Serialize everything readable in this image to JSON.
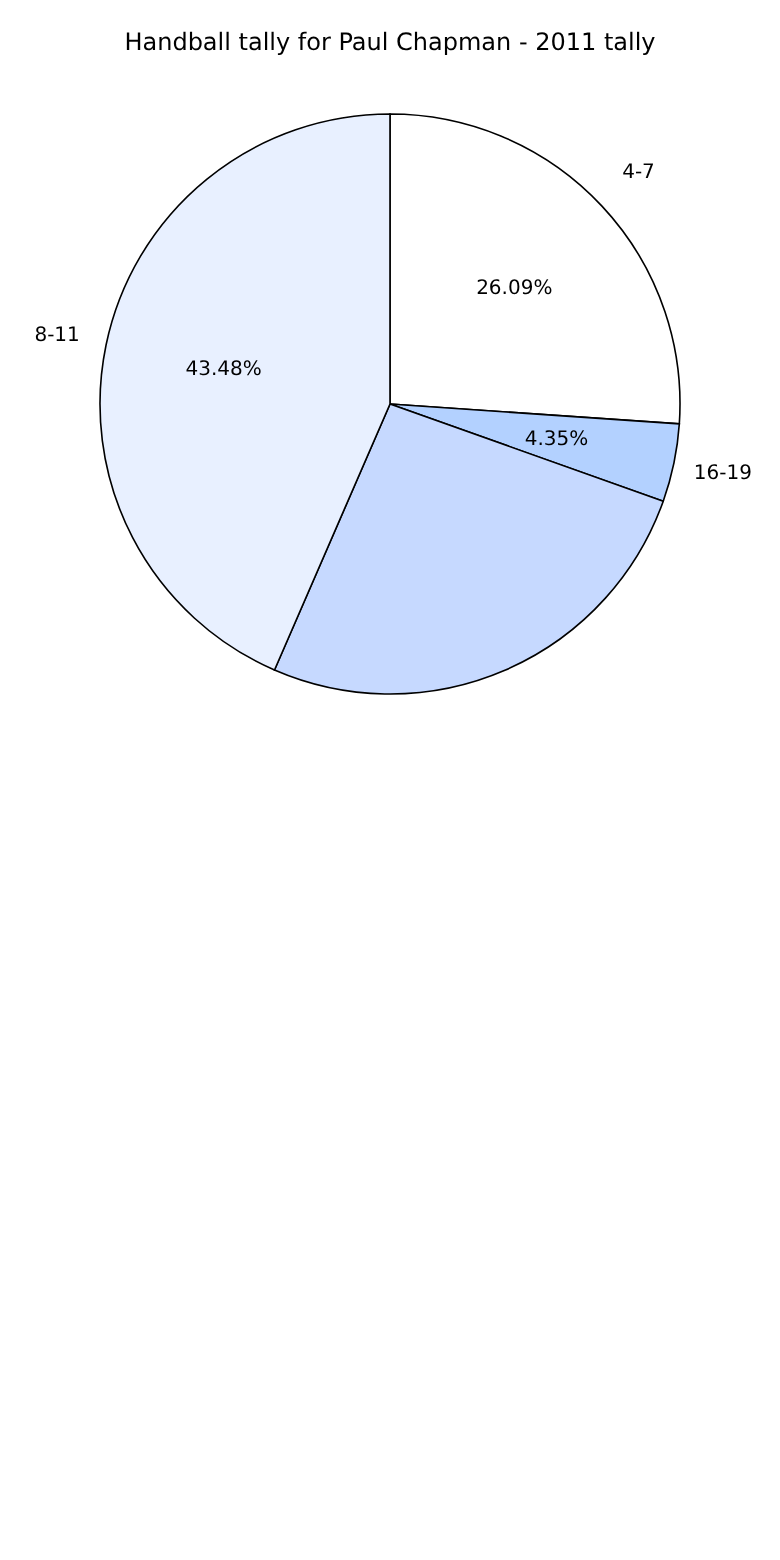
{
  "chart_data": {
    "type": "pie",
    "title": "Handball tally for Paul Chapman - 2011 tally",
    "categories": [
      "4-7",
      "16-19",
      null,
      "8-11"
    ],
    "values": [
      26.09,
      4.35,
      26.08,
      43.48
    ],
    "colors": [
      "#ffffff",
      "#b3d1ff",
      "#c6d9ff",
      "#e8f0ff"
    ],
    "value_labels": [
      "26.09%",
      "4.35%",
      null,
      "43.48%"
    ],
    "legend": false
  }
}
